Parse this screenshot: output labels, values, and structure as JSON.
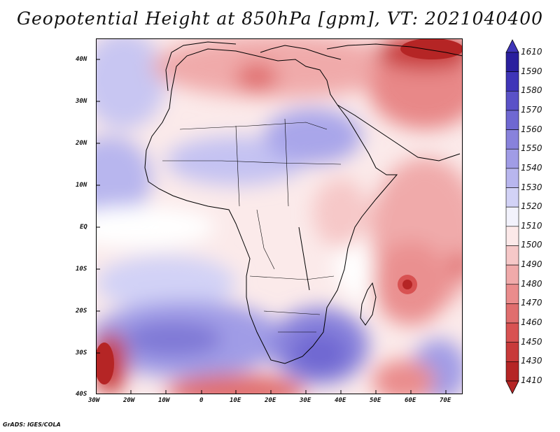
{
  "title": "Geopotential Height at 850hPa [gpm], VT: 2021040400",
  "footer": "GrADS: IGES/COLA",
  "axes": {
    "lat_labels": [
      "40N",
      "30N",
      "20N",
      "10N",
      "EQ",
      "10S",
      "20S",
      "30S",
      "40S"
    ],
    "lon_labels": [
      "30W",
      "20W",
      "10W",
      "0",
      "10E",
      "20E",
      "30E",
      "40E",
      "50E",
      "60E",
      "70E"
    ]
  },
  "colorbar": {
    "levels": [
      "1610",
      "1590",
      "1580",
      "1570",
      "1560",
      "1550",
      "1540",
      "1530",
      "1520",
      "1510",
      "1500",
      "1490",
      "1480",
      "1470",
      "1460",
      "1450",
      "1430",
      "1410"
    ],
    "colors": [
      "#2a1f9e",
      "#3f35b8",
      "#5a52c8",
      "#6f68d2",
      "#8882dc",
      "#a09ce6",
      "#b8b6ee",
      "#d2d2f6",
      "#f2f2fc",
      "#fce9e9",
      "#f6c8c8",
      "#f0aaaa",
      "#ea8c8c",
      "#e06e6e",
      "#d85252",
      "#c83a3a",
      "#b52525"
    ]
  },
  "colors": {
    "high": "#3f35b8",
    "low": "#b52525",
    "neutral": "#ffffff",
    "coast": "#000000"
  }
}
